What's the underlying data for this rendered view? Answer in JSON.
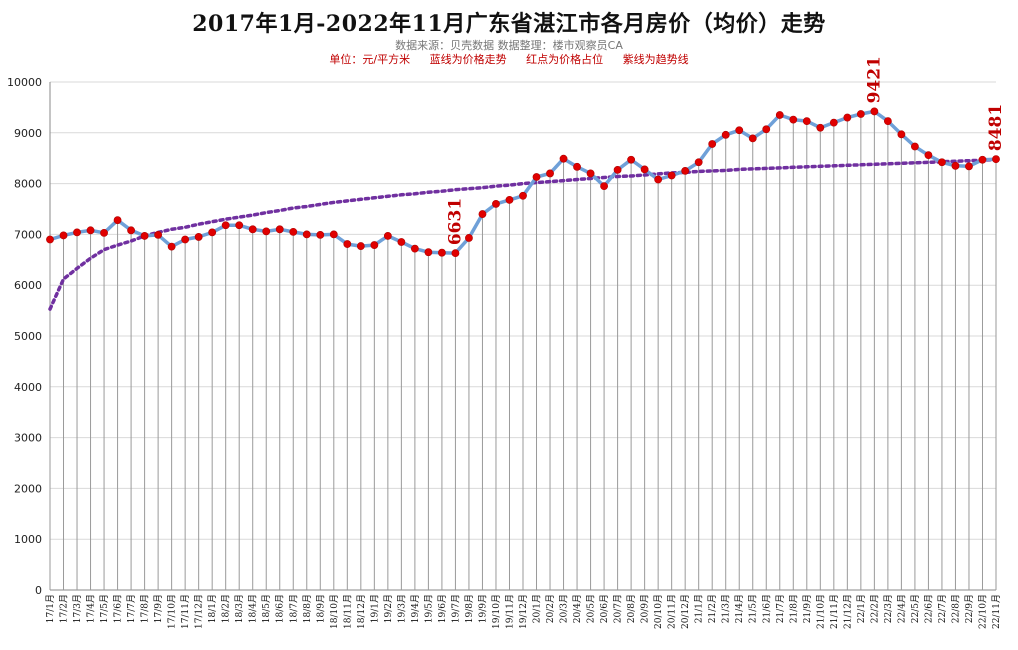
{
  "header": {
    "title": "2017年1月-2022年11月广东省湛江市各月房价（均价）走势",
    "subtitle": "数据来源：贝壳数据  数据整理：楼市观察员CA",
    "legend_unit": "单位：元/平方米",
    "legend_blue": "蓝线为价格走势",
    "legend_red": "红点为价格占位",
    "legend_purple": "紫线为趋势线"
  },
  "colors": {
    "line": "#6fa0d8",
    "dot": "#e00000",
    "trend": "#7030a0",
    "vgrid": "#9a9a9a",
    "hgrid": "#d9d9d9",
    "label": "#c00000"
  },
  "chart_data": {
    "type": "line",
    "ylim": [
      0,
      10000
    ],
    "yticks": [
      0,
      1000,
      2000,
      3000,
      4000,
      5000,
      6000,
      7000,
      8000,
      9000,
      10000
    ],
    "categories": [
      "17/1月",
      "17/2月",
      "17/3月",
      "17/4月",
      "17/5月",
      "17/6月",
      "17/7月",
      "17/8月",
      "17/9月",
      "17/10月",
      "17/11月",
      "17/12月",
      "18/1月",
      "18/2月",
      "18/3月",
      "18/4月",
      "18/5月",
      "18/6月",
      "18/7月",
      "18/8月",
      "18/9月",
      "18/10月",
      "18/11月",
      "18/12月",
      "19/1月",
      "19/2月",
      "19/3月",
      "19/4月",
      "19/5月",
      "19/6月",
      "19/7月",
      "19/8月",
      "19/9月",
      "19/10月",
      "19/11月",
      "19/12月",
      "20/1月",
      "20/2月",
      "20/3月",
      "20/4月",
      "20/5月",
      "20/6月",
      "20/7月",
      "20/8月",
      "20/9月",
      "20/10月",
      "20/11月",
      "20/12月",
      "21/1月",
      "21/2月",
      "21/3月",
      "21/4月",
      "21/5月",
      "21/6月",
      "21/7月",
      "21/8月",
      "21/9月",
      "21/10月",
      "21/11月",
      "21/12月",
      "22/1月",
      "22/2月",
      "22/3月",
      "22/4月",
      "22/5月",
      "22/6月",
      "22/7月",
      "22/8月",
      "22/9月",
      "22/10月",
      "22/11月"
    ],
    "series": [
      {
        "values": [
          6900,
          6980,
          7040,
          7080,
          7030,
          7280,
          7080,
          6970,
          6990,
          6760,
          6900,
          6950,
          7040,
          7180,
          7180,
          7100,
          7060,
          7100,
          7050,
          7000,
          6990,
          7000,
          6810,
          6770,
          6790,
          6970,
          6850,
          6720,
          6650,
          6640,
          6631,
          6930,
          7400,
          7600,
          7680,
          7760,
          8130,
          8200,
          8490,
          8330,
          8200,
          7950,
          8270,
          8470,
          8280,
          8080,
          8160,
          8250,
          8420,
          8780,
          8960,
          9050,
          8890,
          9070,
          9350,
          9260,
          9230,
          9100,
          9200,
          9300,
          9370,
          9421,
          9230,
          8970,
          8730,
          8560,
          8420,
          8350,
          8340,
          8470,
          8481
        ]
      },
      {
        "name": "trend",
        "values": [
          5530,
          6120,
          6330,
          6530,
          6700,
          6790,
          6870,
          6970,
          7040,
          7100,
          7140,
          7200,
          7250,
          7300,
          7340,
          7380,
          7430,
          7470,
          7520,
          7550,
          7590,
          7630,
          7660,
          7690,
          7720,
          7750,
          7780,
          7800,
          7830,
          7850,
          7880,
          7900,
          7920,
          7950,
          7970,
          8000,
          8020,
          8040,
          8060,
          8080,
          8100,
          8120,
          8140,
          8150,
          8170,
          8190,
          8210,
          8220,
          8240,
          8250,
          8260,
          8280,
          8290,
          8300,
          8310,
          8320,
          8330,
          8340,
          8350,
          8360,
          8370,
          8380,
          8390,
          8400,
          8410,
          8420,
          8430,
          8440,
          8450,
          8460,
          8470
        ]
      }
    ],
    "annotations": [
      {
        "category": "19/7月",
        "value": 6631,
        "text": "6631"
      },
      {
        "category": "22/2月",
        "value": 9421,
        "text": "9421"
      },
      {
        "category": "22/11月",
        "value": 8481,
        "text": "8481"
      }
    ]
  }
}
